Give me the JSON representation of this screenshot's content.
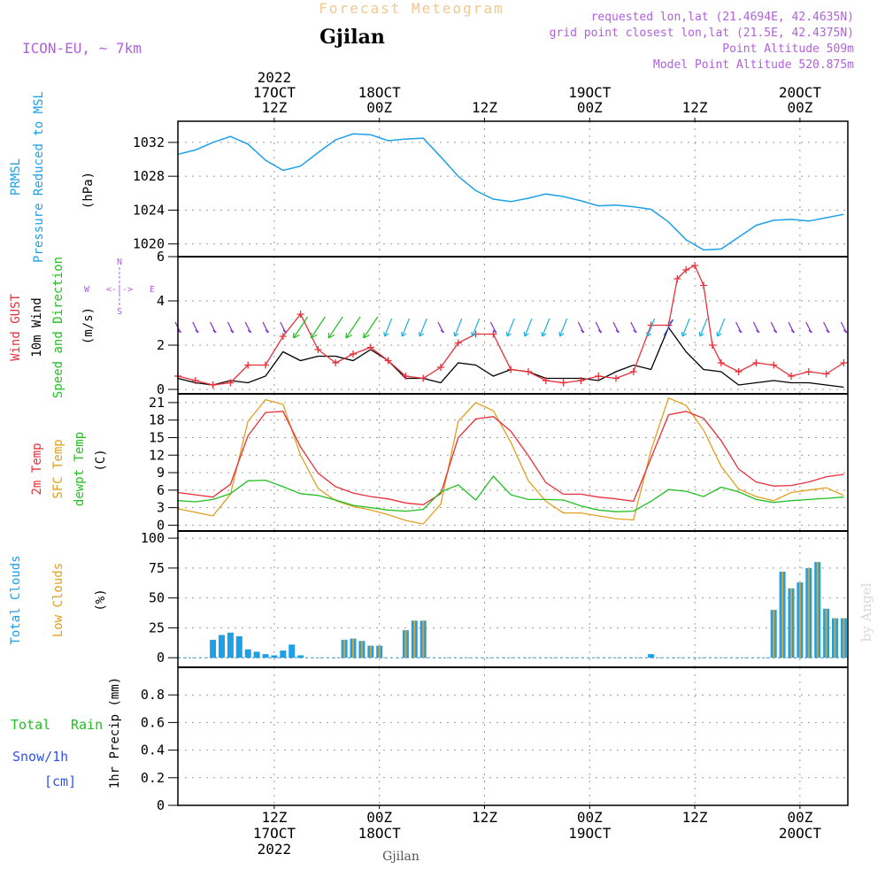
{
  "header": {
    "forecast_title": "Forecast Meteogram",
    "station": "Gjilan",
    "model": "ICON-EU, ~ 7km",
    "requested": "requested lon,lat (21.4694E, 42.4635N)",
    "grid_point": "grid point closest lon,lat (21.5E, 42.4375N)",
    "point_alt": "Point Altitude 509m",
    "model_alt": "Model Point Altitude 520.875m",
    "footer_station": "Gjilan",
    "watermark": "by Angel"
  },
  "colors": {
    "pressure": "#1ea0e8",
    "gust": "#e8303a",
    "wind": "#000000",
    "direction": "#22c022",
    "temp": "#e8303a",
    "sfc": "#e0a020",
    "dewpt": "#22c022",
    "total_cloud": "#1ea0e8",
    "low_cloud": "#e0a020",
    "header": "#b060e0",
    "rain": "#22c022",
    "snow": "#3050f0"
  },
  "time_axis": {
    "top_labels": [
      {
        "t": 12,
        "lines": [
          "2022",
          "17OCT",
          "12Z"
        ]
      },
      {
        "t": 24,
        "lines": [
          "18OCT",
          "00Z"
        ]
      },
      {
        "t": 36,
        "lines": [
          "12Z"
        ]
      },
      {
        "t": 48,
        "lines": [
          "19OCT",
          "00Z"
        ]
      },
      {
        "t": 60,
        "lines": [
          "12Z"
        ]
      },
      {
        "t": 72,
        "lines": [
          "20OCT",
          "00Z"
        ]
      }
    ],
    "bottom_labels": [
      {
        "t": 12,
        "lines": [
          "12Z",
          "17OCT",
          "2022"
        ]
      },
      {
        "t": 24,
        "lines": [
          "00Z",
          "18OCT"
        ]
      },
      {
        "t": 36,
        "lines": [
          "12Z"
        ]
      },
      {
        "t": 48,
        "lines": [
          "00Z",
          "19OCT"
        ]
      },
      {
        "t": 60,
        "lines": [
          "12Z"
        ]
      },
      {
        "t": 72,
        "lines": [
          "00Z",
          "20OCT"
        ]
      }
    ]
  },
  "panels": {
    "pressure": {
      "labels": [
        "PRMSL",
        "Pressure Reduced to MSL"
      ],
      "unit": "(hPa)",
      "ticks": [
        1020,
        1024,
        1028,
        1032
      ]
    },
    "wind": {
      "labels": [
        "Wind GUST",
        "10m Wind",
        "Speed and Direction"
      ],
      "unit": "(m/s)",
      "ticks": [
        0,
        2,
        4,
        6
      ],
      "compass": {
        "n": "N",
        "s": "S",
        "w": "W",
        "e": "E",
        "arrows": "<-|->"
      }
    },
    "temp": {
      "labels": [
        "2m Temp",
        "SFC Temp",
        "dewpt Temp"
      ],
      "unit": "(C)",
      "ticks": [
        0,
        3,
        6,
        9,
        12,
        15,
        18,
        21
      ]
    },
    "clouds": {
      "labels": [
        "Total Clouds",
        "Low Clouds"
      ],
      "unit": "(%)",
      "ticks": [
        0,
        25,
        50,
        75,
        100
      ]
    },
    "precip": {
      "labels": [
        "Total",
        "Rain",
        "Snow/1h",
        "[cm]"
      ],
      "unit": "1hr Precip (mm)",
      "ticks": [
        "0",
        "0.2",
        "0.4",
        "0.6",
        "0.8"
      ]
    }
  },
  "chart_data": {
    "type": "line",
    "x_unit": "hours from 2022-10-17 00Z",
    "x_range": [
      1,
      77
    ],
    "pressure_hPa": {
      "x": [
        1,
        3,
        5,
        7,
        9,
        11,
        13,
        15,
        17,
        19,
        21,
        23,
        25,
        27,
        29,
        31,
        33,
        35,
        37,
        39,
        41,
        43,
        45,
        47,
        49,
        51,
        53,
        55,
        57,
        59,
        61,
        63,
        65,
        67,
        69,
        71,
        73,
        75,
        77
      ],
      "y": [
        1030.6,
        1031.1,
        1032.0,
        1032.7,
        1031.8,
        1029.9,
        1028.7,
        1029.2,
        1030.8,
        1032.3,
        1033.0,
        1032.9,
        1032.2,
        1032.4,
        1032.5,
        1030.3,
        1028.0,
        1026.3,
        1025.3,
        1025.0,
        1025.4,
        1025.9,
        1025.6,
        1025.1,
        1024.5,
        1024.6,
        1024.4,
        1024.1,
        1022.6,
        1020.5,
        1019.3,
        1019.4,
        1020.8,
        1022.2,
        1022.8,
        1022.9,
        1022.7,
        1023.1,
        1023.5
      ]
    },
    "wind_gust_ms": {
      "x": [
        1,
        3,
        5,
        7,
        9,
        11,
        13,
        15,
        17,
        19,
        21,
        23,
        25,
        27,
        29,
        31,
        33,
        35,
        37,
        39,
        41,
        43,
        45,
        47,
        49,
        51,
        53,
        55,
        57,
        58,
        59,
        60,
        61,
        62,
        63,
        65,
        67,
        69,
        71,
        73,
        75,
        77
      ],
      "y": [
        0.6,
        0.4,
        0.2,
        0.3,
        1.1,
        1.1,
        2.4,
        3.4,
        1.8,
        1.2,
        1.6,
        1.9,
        1.3,
        0.6,
        0.5,
        1.0,
        2.1,
        2.5,
        2.5,
        0.9,
        0.8,
        0.4,
        0.3,
        0.4,
        0.6,
        0.5,
        0.8,
        2.9,
        2.9,
        5.0,
        5.4,
        5.6,
        4.7,
        2.0,
        1.2,
        0.8,
        1.2,
        1.1,
        0.6,
        0.8,
        0.7,
        1.2
      ]
    },
    "wind_speed_ms": {
      "x": [
        1,
        3,
        5,
        7,
        9,
        11,
        13,
        15,
        17,
        19,
        21,
        23,
        25,
        27,
        29,
        31,
        33,
        35,
        37,
        39,
        41,
        43,
        45,
        47,
        49,
        51,
        53,
        55,
        57,
        59,
        61,
        63,
        65,
        67,
        69,
        71,
        73,
        75,
        77
      ],
      "y": [
        0.5,
        0.3,
        0.2,
        0.4,
        0.3,
        0.6,
        1.7,
        1.3,
        1.5,
        1.5,
        1.3,
        1.8,
        1.3,
        0.5,
        0.5,
        0.3,
        1.2,
        1.1,
        0.6,
        0.9,
        0.8,
        0.5,
        0.5,
        0.5,
        0.4,
        0.8,
        1.1,
        0.9,
        2.8,
        1.7,
        0.9,
        0.8,
        0.2,
        0.3,
        0.4,
        0.3,
        0.3,
        0.2,
        0.1
      ]
    },
    "wind_dir_arrows": {
      "x": [
        1,
        3,
        5,
        7,
        9,
        11,
        13,
        15,
        17,
        19,
        21,
        23,
        25,
        27,
        29,
        31,
        33,
        35,
        37,
        39,
        41,
        43,
        45,
        47,
        49,
        51,
        53,
        55,
        57,
        59,
        61,
        63,
        65,
        67,
        69,
        71,
        73,
        75,
        77
      ],
      "color_key": [
        "v",
        "v",
        "v",
        "v",
        "v",
        "v",
        "v",
        "g",
        "g",
        "g",
        "g",
        "g",
        "c",
        "c",
        "c",
        "v",
        "c",
        "c",
        "v",
        "c",
        "c",
        "c",
        "c",
        "v",
        "v",
        "v",
        "v",
        "c",
        "b",
        "c",
        "c",
        "c",
        "v",
        "v",
        "v",
        "v",
        "v",
        "v",
        "v"
      ]
    },
    "temp_2m_C": {
      "x": [
        1,
        3,
        5,
        7,
        9,
        11,
        13,
        15,
        17,
        19,
        21,
        23,
        25,
        27,
        29,
        31,
        33,
        35,
        37,
        39,
        41,
        43,
        45,
        47,
        49,
        51,
        53,
        55,
        57,
        59,
        61,
        63,
        65,
        67,
        69,
        71,
        73,
        75,
        77
      ],
      "y": [
        5.6,
        5.2,
        4.8,
        7.0,
        15.3,
        19.3,
        19.5,
        13.4,
        8.9,
        6.6,
        5.5,
        4.9,
        4.5,
        3.8,
        3.5,
        5.4,
        15.0,
        18.2,
        18.6,
        16.1,
        11.9,
        7.3,
        5.3,
        5.3,
        4.8,
        4.5,
        4.1,
        11.5,
        18.9,
        19.5,
        18.3,
        14.5,
        9.6,
        7.4,
        6.7,
        6.8,
        7.4,
        8.3,
        8.7
      ]
    },
    "temp_sfc_C": {
      "x": [
        1,
        3,
        5,
        7,
        9,
        11,
        13,
        15,
        17,
        19,
        21,
        23,
        25,
        27,
        29,
        31,
        33,
        35,
        37,
        39,
        41,
        43,
        45,
        47,
        49,
        51,
        53,
        55,
        57,
        59,
        61,
        63,
        65,
        67,
        69,
        71,
        73,
        75,
        77
      ],
      "y": [
        2.8,
        2.2,
        1.6,
        5.3,
        17.8,
        21.5,
        20.7,
        12.0,
        6.3,
        4.2,
        3.2,
        2.6,
        1.8,
        0.8,
        0.2,
        3.6,
        17.8,
        21.0,
        19.6,
        14.2,
        7.6,
        4.1,
        2.1,
        2.1,
        1.6,
        1.1,
        0.9,
        12.8,
        21.8,
        20.5,
        16.3,
        10.1,
        6.2,
        4.9,
        4.2,
        5.6,
        6.0,
        6.4,
        5.1
      ]
    },
    "temp_dewpt_C": {
      "x": [
        1,
        3,
        5,
        7,
        9,
        11,
        13,
        15,
        17,
        19,
        21,
        23,
        25,
        27,
        29,
        31,
        33,
        35,
        37,
        39,
        41,
        43,
        45,
        47,
        49,
        51,
        53,
        55,
        57,
        59,
        61,
        63,
        65,
        67,
        69,
        71,
        73,
        75,
        77
      ],
      "y": [
        4.2,
        4.0,
        4.4,
        5.4,
        7.6,
        7.7,
        6.6,
        5.4,
        5.1,
        4.3,
        3.4,
        3.0,
        2.6,
        2.4,
        2.7,
        5.7,
        6.9,
        4.3,
        8.4,
        5.2,
        4.4,
        4.4,
        4.3,
        3.3,
        2.6,
        2.3,
        2.4,
        4.1,
        6.1,
        5.8,
        4.9,
        6.5,
        5.7,
        4.4,
        3.9,
        4.2,
        4.4,
        4.6,
        4.8
      ]
    },
    "total_cloud_pct": {
      "x": [
        5,
        6,
        7,
        8,
        9,
        10,
        11,
        12,
        13,
        14,
        15,
        20,
        21,
        22,
        23,
        24,
        27,
        28,
        29,
        55,
        69,
        70,
        71,
        72,
        73,
        74,
        75,
        76,
        77
      ],
      "y": [
        15,
        19,
        21,
        18,
        7,
        5,
        3,
        2,
        6,
        11,
        2,
        15,
        16,
        14,
        10,
        10,
        23,
        31,
        31,
        3,
        40,
        72,
        58,
        63,
        75,
        80,
        41,
        33,
        33
      ]
    },
    "low_cloud_pct": {
      "x": [
        20,
        21,
        22,
        23,
        24,
        27,
        28,
        29,
        69,
        70,
        71,
        72,
        73,
        74,
        75,
        76,
        77
      ],
      "y": [
        15,
        16,
        14,
        10,
        10,
        23,
        31,
        31,
        40,
        72,
        58,
        63,
        75,
        80,
        41,
        33,
        33
      ]
    },
    "precip_mm": {
      "x": [],
      "y": []
    }
  }
}
